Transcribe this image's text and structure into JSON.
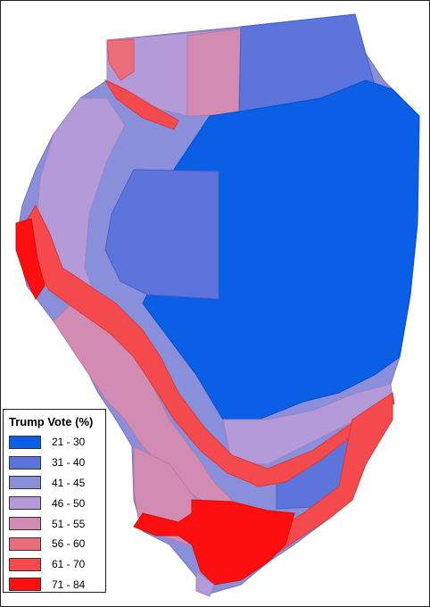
{
  "legend": {
    "title": "Trump Vote (%)",
    "items": [
      {
        "label": "21 - 30",
        "color": "#0a5fe6"
      },
      {
        "label": "31 - 40",
        "color": "#5c74dc"
      },
      {
        "label": "41 - 45",
        "color": "#8a8fdb"
      },
      {
        "label": "46 - 50",
        "color": "#b49ad8"
      },
      {
        "label": "51 - 55",
        "color": "#d28cb4"
      },
      {
        "label": "56 - 60",
        "color": "#ea6e7a"
      },
      {
        "label": "61 - 70",
        "color": "#f44a4e"
      },
      {
        "label": "71 - 84",
        "color": "#fd0f10"
      }
    ]
  }
}
